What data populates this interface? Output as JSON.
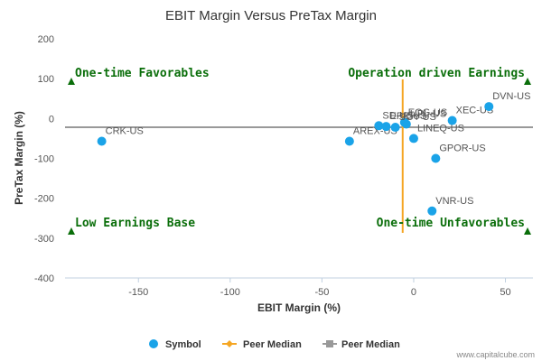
{
  "chart_data": {
    "type": "scatter",
    "title": "EBIT Margin Versus PreTax Margin",
    "xlabel": "EBIT Margin (%)",
    "ylabel": "PreTax Margin (%)",
    "xlim": [
      -190,
      65
    ],
    "ylim": [
      -400,
      200
    ],
    "x_ticks": [
      -150,
      -100,
      -50,
      0,
      50
    ],
    "y_ticks": [
      200,
      100,
      0,
      -100,
      -200,
      -300,
      -400
    ],
    "grid": false,
    "legend_position": "bottom",
    "series": [
      {
        "name": "Symbol",
        "color": "#1aa3e8",
        "points": [
          {
            "label": "CRK-US",
            "x": -170,
            "y": -57
          },
          {
            "label": "AREX-US",
            "x": -35,
            "y": -57
          },
          {
            "label": "SD-US",
            "x": -19,
            "y": -18
          },
          {
            "label": "EPE-US",
            "x": -15,
            "y": -20
          },
          {
            "label": "EOG-US",
            "x": -5,
            "y": -10
          },
          {
            "label": "UPL-US",
            "x": -4,
            "y": -14
          },
          {
            "label": "SGY-US",
            "x": -10,
            "y": -22
          },
          {
            "label": "LINEQ-US",
            "x": 0,
            "y": -50
          },
          {
            "label": "XEC-US",
            "x": 21,
            "y": -5
          },
          {
            "label": "DVN-US",
            "x": 41,
            "y": 30
          },
          {
            "label": "GPOR-US",
            "x": 12,
            "y": -100
          },
          {
            "label": "VNR-US",
            "x": 10,
            "y": -232
          }
        ]
      },
      {
        "name": "Peer Median",
        "type": "vertical-line",
        "color": "#f5a623",
        "value": -6
      },
      {
        "name": "Peer Median",
        "type": "horizontal-line",
        "color": "#999999",
        "value": -22
      }
    ],
    "quadrants": {
      "top_left": "One-time Favorables",
      "top_right": "Operation driven Earnings",
      "bottom_left": "Low Earnings Base",
      "bottom_right": "One-time Unfavorables"
    },
    "quadrant_color": "#0a6e0a"
  },
  "credit": "www.capitalcube.com"
}
